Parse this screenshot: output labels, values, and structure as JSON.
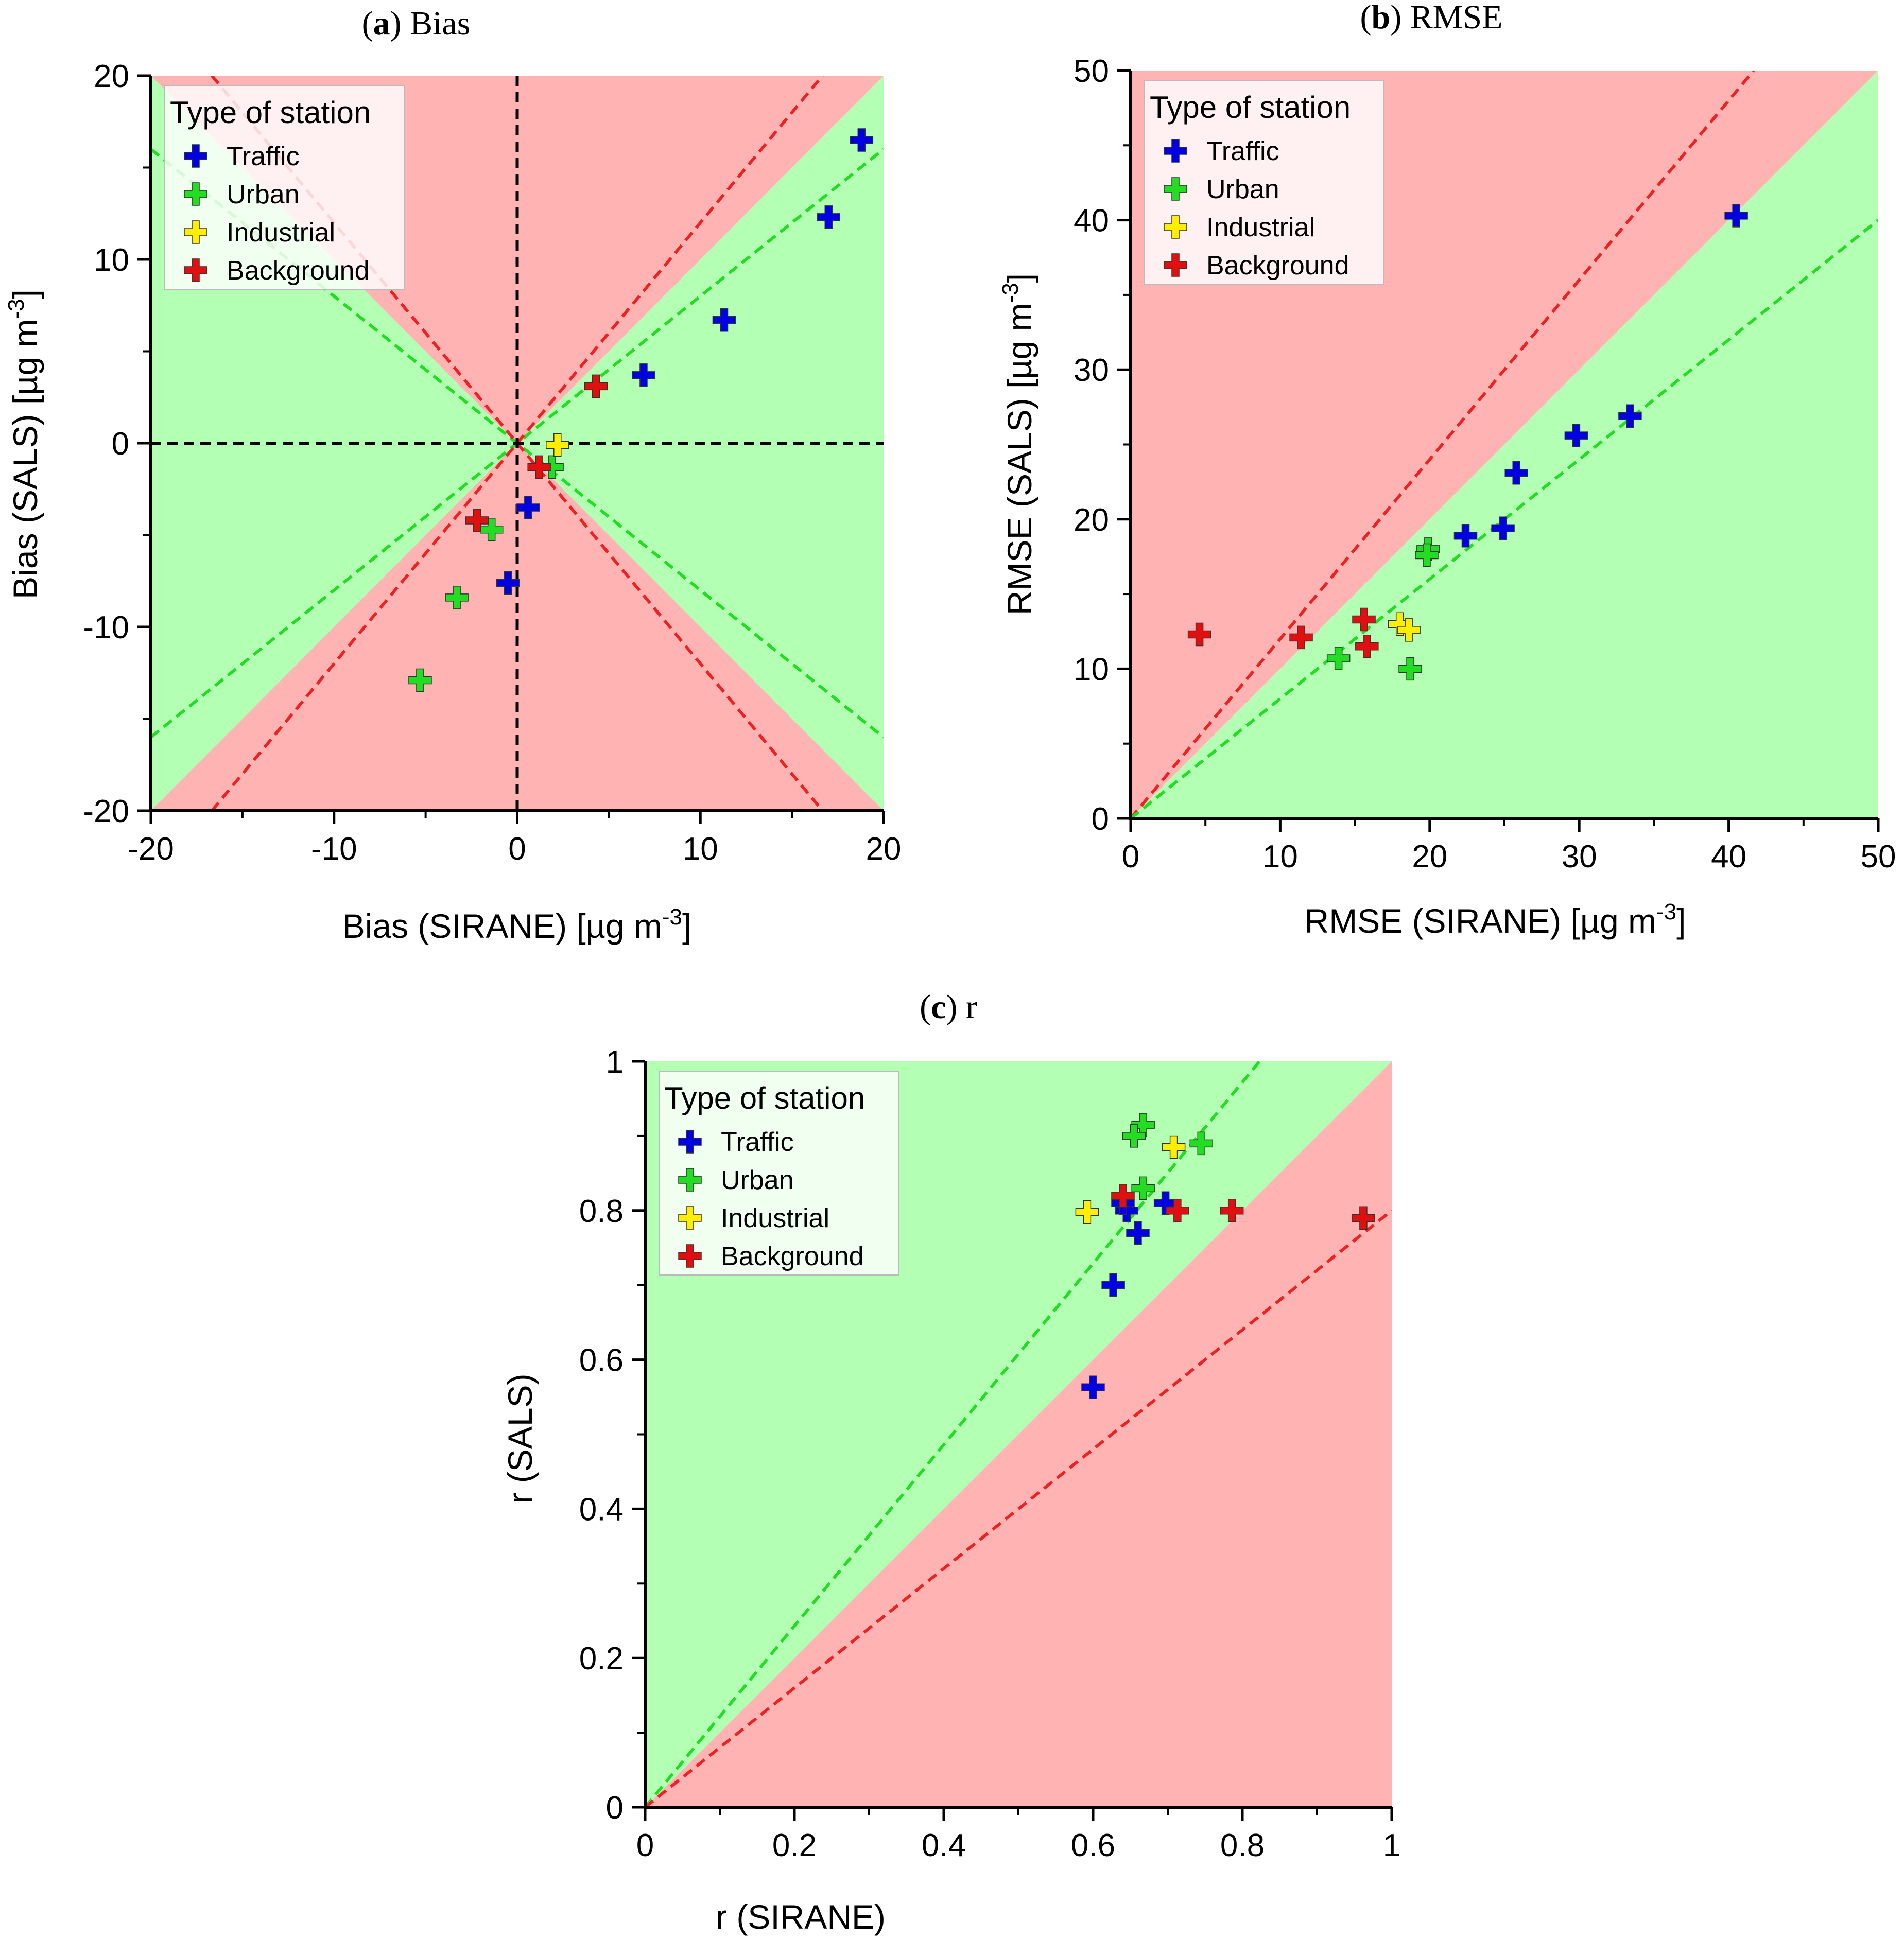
{
  "colors": {
    "green_region": "#b3ffb3",
    "red_region": "#ffb3b3",
    "green_line": "#22dd22",
    "red_line": "#ee2222",
    "black_line": "#000000",
    "Traffic": "#0000e0",
    "Urban": "#22dd22",
    "Industrial": "#ffee00",
    "Background": "#e01010"
  },
  "chart_data": [
    {
      "type": "scatter",
      "panel_letter": "a",
      "title": "Bias",
      "xlabel": "Bias (SIRANE) [µg m",
      "ylabel": "Bias (SALS) [µg m",
      "unit_exp": "-3",
      "unit_close": "]",
      "xlim": [
        -20,
        20
      ],
      "ylim": [
        -20,
        20
      ],
      "xticks": [
        "-20",
        "-10",
        "0",
        "10",
        "20"
      ],
      "yticks": [
        "-20",
        "-10",
        "0",
        "10",
        "20"
      ],
      "xtick_values": [
        -20,
        -10,
        0,
        10,
        20
      ],
      "ytick_values": [
        -20,
        -10,
        0,
        10,
        20
      ],
      "legend": {
        "title": "Type of station",
        "location": "top-left",
        "entries": [
          "Traffic",
          "Urban",
          "Industrial",
          "Background"
        ]
      },
      "series": [
        {
          "name": "Traffic",
          "x": [
            18.8,
            17.0,
            11.3,
            6.9,
            0.6,
            -0.5
          ],
          "y": [
            16.5,
            12.3,
            6.7,
            3.7,
            -3.5,
            -7.6
          ]
        },
        {
          "name": "Urban",
          "x": [
            1.9,
            -1.4,
            -3.3,
            -5.3
          ],
          "y": [
            -1.3,
            -4.7,
            -8.4,
            -12.9
          ]
        },
        {
          "name": "Industrial",
          "x": [
            2.2
          ],
          "y": [
            -0.1
          ]
        },
        {
          "name": "Background",
          "x": [
            4.3,
            1.2,
            -2.2
          ],
          "y": [
            3.1,
            -1.3,
            -4.2
          ]
        }
      ]
    },
    {
      "type": "scatter",
      "panel_letter": "b",
      "title": "RMSE",
      "xlabel": "RMSE (SIRANE) [µg m",
      "ylabel": "RMSE (SALS) [µg m",
      "unit_exp": "-3",
      "unit_close": "]",
      "xlim": [
        0,
        50
      ],
      "ylim": [
        0,
        50
      ],
      "xticks": [
        "0",
        "10",
        "20",
        "30",
        "40",
        "50"
      ],
      "yticks": [
        "0",
        "10",
        "20",
        "30",
        "40",
        "50"
      ],
      "xtick_values": [
        0,
        10,
        20,
        30,
        40,
        50
      ],
      "ytick_values": [
        0,
        10,
        20,
        30,
        40,
        50
      ],
      "legend": {
        "title": "Type of station",
        "location": "top-left",
        "entries": [
          "Traffic",
          "Urban",
          "Industrial",
          "Background"
        ]
      },
      "series": [
        {
          "name": "Traffic",
          "x": [
            40.5,
            33.4,
            29.8,
            25.8,
            24.9,
            22.4
          ],
          "y": [
            40.3,
            26.9,
            25.6,
            23.1,
            19.4,
            18.9
          ]
        },
        {
          "name": "Urban",
          "x": [
            19.9,
            19.8,
            13.9,
            18.7
          ],
          "y": [
            18.0,
            17.6,
            10.7,
            10.0
          ]
        },
        {
          "name": "Industrial",
          "x": [
            18.0,
            18.6
          ],
          "y": [
            13.0,
            12.6
          ]
        },
        {
          "name": "Background",
          "x": [
            4.6,
            11.4,
            15.6,
            15.8
          ],
          "y": [
            12.3,
            12.1,
            13.3,
            11.5
          ]
        }
      ]
    },
    {
      "type": "scatter",
      "panel_letter": "c",
      "title": "r",
      "xlabel": "r (SIRANE)",
      "ylabel": "r (SALS)",
      "unit_exp": "",
      "unit_close": "",
      "xlim": [
        0,
        1
      ],
      "ylim": [
        0,
        1
      ],
      "xticks": [
        "0",
        "0.2",
        "0.4",
        "0.6",
        "0.8",
        "1"
      ],
      "yticks": [
        "0",
        "0.2",
        "0.4",
        "0.6",
        "0.8",
        "1"
      ],
      "xtick_values": [
        0,
        0.2,
        0.4,
        0.6,
        0.8,
        1
      ],
      "ytick_values": [
        0,
        0.2,
        0.4,
        0.6,
        0.8,
        1
      ],
      "legend": {
        "title": "Type of station",
        "location": "top-left",
        "entries": [
          "Traffic",
          "Urban",
          "Industrial",
          "Background"
        ]
      },
      "series": [
        {
          "name": "Traffic",
          "x": [
            0.6,
            0.627,
            0.66,
            0.645,
            0.64,
            0.697
          ],
          "y": [
            0.563,
            0.7,
            0.77,
            0.8,
            0.81,
            0.81
          ]
        },
        {
          "name": "Urban",
          "x": [
            0.667,
            0.655,
            0.745,
            0.667
          ],
          "y": [
            0.915,
            0.9,
            0.89,
            0.83
          ]
        },
        {
          "name": "Industrial",
          "x": [
            0.592,
            0.708
          ],
          "y": [
            0.798,
            0.885
          ]
        },
        {
          "name": "Background",
          "x": [
            0.64,
            0.713,
            0.786,
            0.962
          ],
          "y": [
            0.82,
            0.8,
            0.8,
            0.79
          ]
        }
      ]
    }
  ]
}
